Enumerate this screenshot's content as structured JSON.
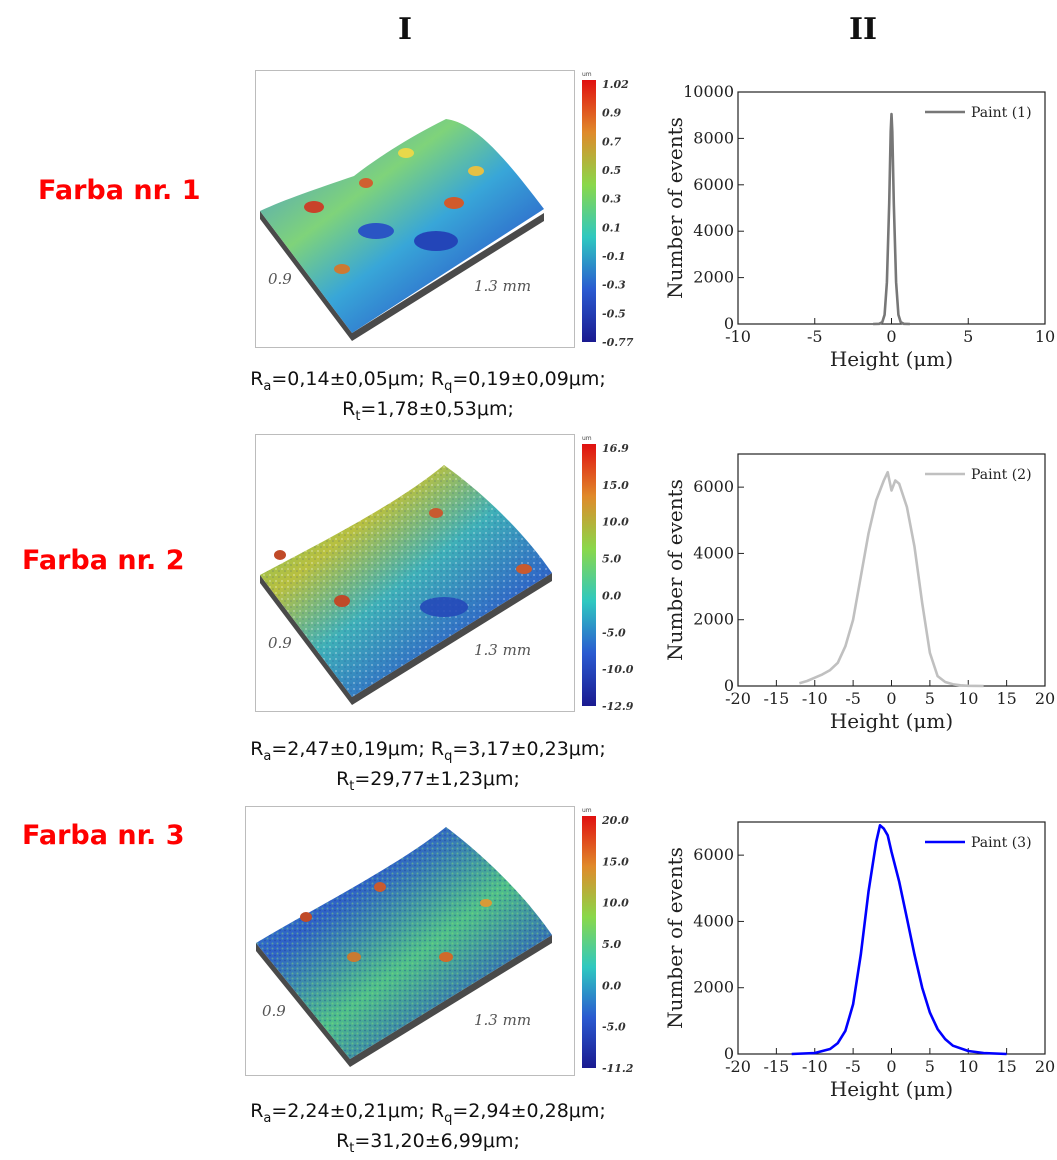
{
  "columns": [
    "I",
    "II"
  ],
  "rows": [
    {
      "label": "Farba nr. 1",
      "colorbar": {
        "unit": "um",
        "ticks": [
          "1.02",
          "0.9",
          "0.7",
          "0.5",
          "0.3",
          "0.1",
          "-0.1",
          "-0.3",
          "-0.5",
          "-0.77"
        ]
      },
      "map_labels": {
        "width": "0.9",
        "length": "1.3 mm"
      },
      "roughness": {
        "Ra": "0,14±0,05μm",
        "Rq": "0,19±0,09μm",
        "Rt": "1,78±0,53μm"
      }
    },
    {
      "label": "Farba nr. 2",
      "colorbar": {
        "unit": "um",
        "ticks": [
          "16.9",
          "15.0",
          "10.0",
          "5.0",
          "0.0",
          "-5.0",
          "-10.0",
          "-12.9"
        ]
      },
      "map_labels": {
        "width": "0.9",
        "length": "1.3 mm"
      },
      "roughness": {
        "Ra": "2,47±0,19μm",
        "Rq": "3,17±0,23μm",
        "Rt": "29,77±1,23μm"
      }
    },
    {
      "label": "Farba nr. 3",
      "colorbar": {
        "unit": "um",
        "ticks": [
          "20.0",
          "15.0",
          "10.0",
          "5.0",
          "0.0",
          "-5.0",
          "-11.2"
        ]
      },
      "map_labels": {
        "width": "0.9",
        "length": "1.3 mm"
      },
      "roughness": {
        "Ra": "2,24±0,21μm",
        "Rq": "2,94±0,28μm",
        "Rt": "31,20±6,99μm"
      }
    }
  ],
  "roughness_labels": {
    "Ra_sym": "R",
    "Ra_sub": "a",
    "Rq_sym": "R",
    "Rq_sub": "q",
    "Rt_sym": "R",
    "Rt_sub": "t"
  },
  "chart_data": [
    {
      "type": "line",
      "xlabel": "Height (μm)",
      "ylabel": "Number of events",
      "xlim": [
        -10,
        10
      ],
      "ylim": [
        0,
        10000
      ],
      "xticks": [
        -10,
        -5,
        0,
        5,
        10
      ],
      "yticks": [
        0,
        2000,
        4000,
        6000,
        8000,
        10000
      ],
      "legend": "top-right",
      "color": "#777777",
      "series": [
        {
          "name": "Paint (1)",
          "x": [
            -1.2,
            -0.8,
            -0.6,
            -0.45,
            -0.3,
            -0.15,
            -0.05,
            0,
            0.05,
            0.15,
            0.3,
            0.45,
            0.6,
            0.8,
            1.2
          ],
          "y": [
            0,
            10,
            80,
            400,
            1800,
            5200,
            8300,
            9050,
            8300,
            5200,
            1800,
            400,
            80,
            10,
            0
          ]
        }
      ]
    },
    {
      "type": "line",
      "xlabel": "Height (μm)",
      "ylabel": "Number of events",
      "xlim": [
        -20,
        20
      ],
      "ylim": [
        0,
        7000
      ],
      "xticks": [
        -20,
        -15,
        -10,
        -5,
        0,
        5,
        10,
        15,
        20
      ],
      "yticks": [
        0,
        2000,
        4000,
        6000
      ],
      "legend": "top-right",
      "color": "#c0c0c0",
      "series": [
        {
          "name": "Paint (2)",
          "x": [
            -12,
            -11,
            -10,
            -9,
            -8,
            -7,
            -6,
            -5,
            -4,
            -3,
            -2,
            -1,
            -0.5,
            0,
            0.5,
            1,
            2,
            3,
            4,
            5,
            6,
            7,
            8,
            9,
            10,
            12
          ],
          "y": [
            80,
            150,
            250,
            350,
            480,
            700,
            1200,
            2000,
            3300,
            4600,
            5600,
            6200,
            6450,
            5900,
            6200,
            6100,
            5400,
            4200,
            2500,
            1000,
            300,
            120,
            50,
            20,
            5,
            0
          ]
        }
      ]
    },
    {
      "type": "line",
      "xlabel": "Height (μm)",
      "ylabel": "Number of events",
      "xlim": [
        -20,
        20
      ],
      "ylim": [
        0,
        7000
      ],
      "xticks": [
        -20,
        -15,
        -10,
        -5,
        0,
        5,
        10,
        15,
        20
      ],
      "yticks": [
        0,
        2000,
        4000,
        6000
      ],
      "legend": "top-right",
      "color": "#0000ff",
      "series": [
        {
          "name": "Paint (3)",
          "x": [
            -13,
            -10,
            -8,
            -7,
            -6,
            -5,
            -4,
            -3,
            -2,
            -1.5,
            -1,
            -0.5,
            0,
            1,
            2,
            3,
            4,
            5,
            6,
            7,
            8,
            10,
            12,
            15
          ],
          "y": [
            0,
            30,
            150,
            330,
            700,
            1500,
            3000,
            4900,
            6400,
            6900,
            6800,
            6600,
            6100,
            5200,
            4100,
            3000,
            2000,
            1250,
            750,
            450,
            250,
            90,
            30,
            0
          ]
        }
      ]
    }
  ]
}
